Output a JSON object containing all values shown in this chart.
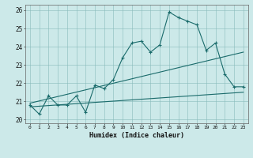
{
  "xlabel": "Humidex (Indice chaleur)",
  "ylabel": "",
  "bg_color": "#cce9e9",
  "line_color": "#1a6b6b",
  "xlim": [
    -0.5,
    23.5
  ],
  "ylim": [
    19.8,
    26.3
  ],
  "xticks": [
    0,
    1,
    2,
    3,
    4,
    5,
    6,
    7,
    8,
    9,
    10,
    11,
    12,
    13,
    14,
    15,
    16,
    17,
    18,
    19,
    20,
    21,
    22,
    23
  ],
  "yticks": [
    20,
    21,
    22,
    23,
    24,
    25,
    26
  ],
  "main_x": [
    0,
    1,
    2,
    3,
    4,
    5,
    6,
    7,
    8,
    9,
    10,
    11,
    12,
    13,
    14,
    15,
    16,
    17,
    18,
    19,
    20,
    21,
    22,
    23
  ],
  "main_y": [
    20.8,
    20.3,
    21.3,
    20.8,
    20.8,
    21.3,
    20.4,
    21.9,
    21.7,
    22.2,
    23.4,
    24.2,
    24.3,
    23.7,
    24.1,
    25.9,
    25.6,
    25.4,
    25.2,
    23.8,
    24.2,
    22.5,
    21.8,
    21.8
  ],
  "trend1_x": [
    0,
    23
  ],
  "trend1_y": [
    20.9,
    23.7
  ],
  "trend2_x": [
    0,
    23
  ],
  "trend2_y": [
    20.7,
    21.5
  ]
}
